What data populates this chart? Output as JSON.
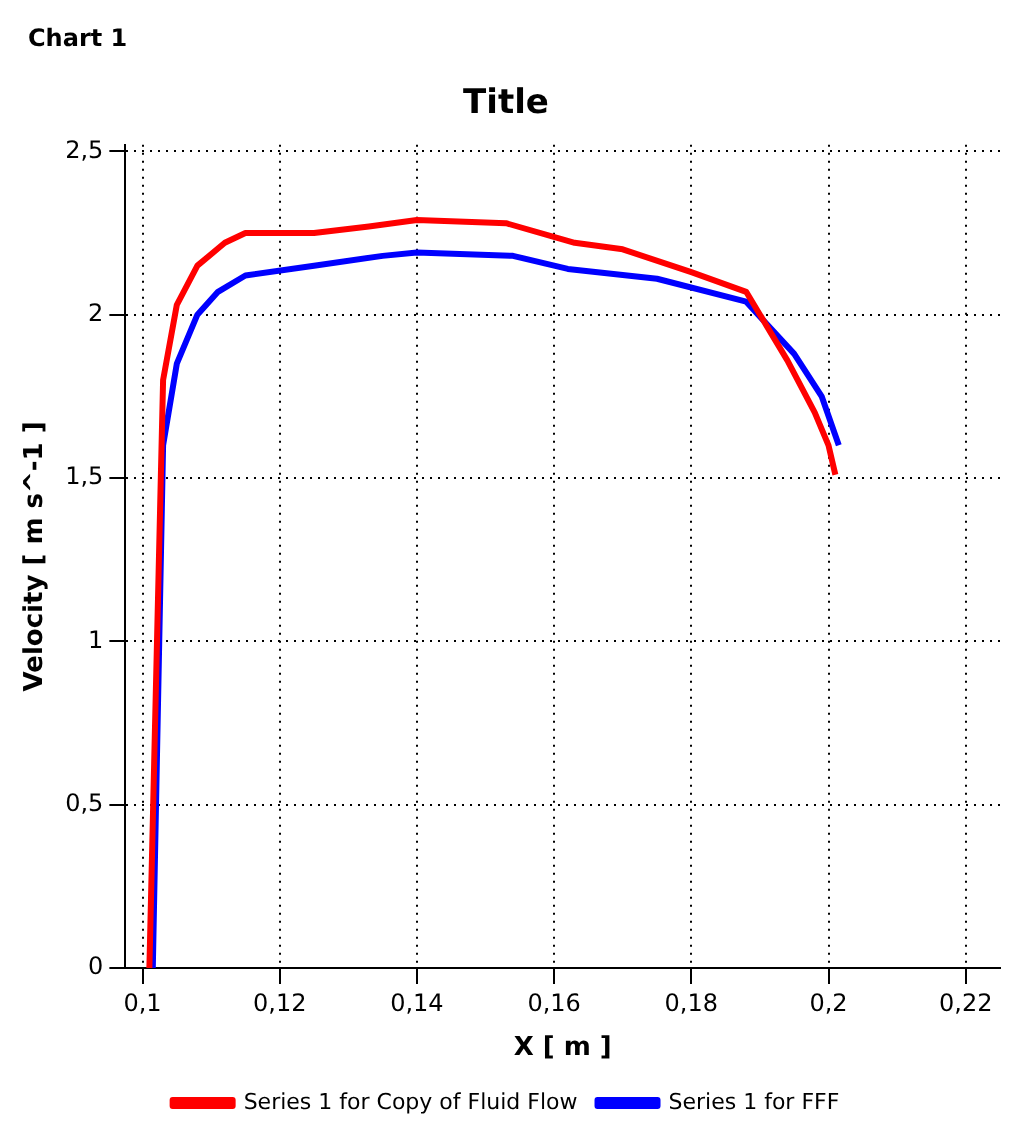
{
  "chart_data": {
    "type": "line",
    "title": "Title",
    "xlabel": "X [ m ]",
    "ylabel": "Velocity [ m s^-1 ]",
    "annotations": [
      "Chart 1"
    ],
    "xlim": [
      0.0975,
      0.225
    ],
    "ylim": [
      0,
      2.52
    ],
    "xticks": [
      {
        "value": 0.1,
        "label": "0,1"
      },
      {
        "value": 0.12,
        "label": "0,12"
      },
      {
        "value": 0.14,
        "label": "0,14"
      },
      {
        "value": 0.16,
        "label": "0,16"
      },
      {
        "value": 0.18,
        "label": "0,18"
      },
      {
        "value": 0.2,
        "label": "0,2"
      },
      {
        "value": 0.22,
        "label": "0,22"
      }
    ],
    "yticks": [
      0,
      {
        "value": 0.5,
        "label": "0,5"
      },
      1,
      {
        "value": 1.5,
        "label": "1,5"
      },
      2,
      {
        "value": 2.5,
        "label": "2,5"
      }
    ],
    "grid": true,
    "legend": "bottom",
    "marker": "none",
    "line_style": "solid",
    "series": [
      {
        "name": "Series 1 for Copy of Fluid Flow",
        "color": "#ff0000",
        "x": [
          0.101,
          0.103,
          0.105,
          0.108,
          0.112,
          0.115,
          0.125,
          0.133,
          0.14,
          0.153,
          0.163,
          0.17,
          0.18,
          0.188,
          0.194,
          0.198,
          0.2,
          0.201
        ],
        "values": [
          0,
          1.8,
          2.03,
          2.15,
          2.22,
          2.25,
          2.25,
          2.27,
          2.29,
          2.28,
          2.22,
          2.2,
          2.13,
          2.07,
          1.86,
          1.7,
          1.6,
          1.51
        ]
      },
      {
        "name": "Series 1 for FFF",
        "color": "#0000ff",
        "x": [
          0.1015,
          0.103,
          0.105,
          0.108,
          0.111,
          0.115,
          0.125,
          0.135,
          0.14,
          0.154,
          0.162,
          0.175,
          0.188,
          0.195,
          0.199,
          0.2015
        ],
        "values": [
          0,
          1.6,
          1.85,
          2.0,
          2.07,
          2.12,
          2.15,
          2.18,
          2.19,
          2.18,
          2.14,
          2.11,
          2.04,
          1.88,
          1.75,
          1.6
        ]
      }
    ]
  }
}
